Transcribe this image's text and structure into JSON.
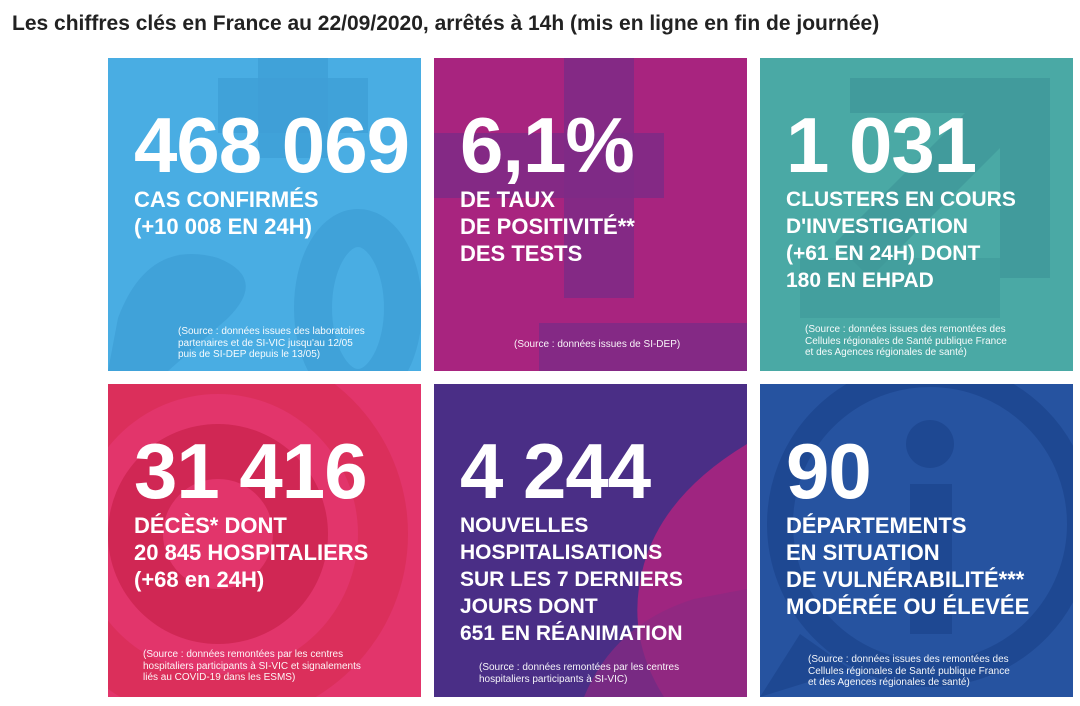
{
  "page": {
    "title": "Les chiffres clés en France au 22/09/2020, arrêtés à 14h (mis en ligne en fin de journée)"
  },
  "tiles": [
    {
      "value": "468 069",
      "label": [
        "CAS CONFIRMÉS",
        "(+10 008 EN 24H)"
      ],
      "source": [
        "(Source : données issues des laboratoires",
        "partenaires et de SI-VIC jusqu'au 12/05",
        "puis de SI-DEP depuis le 13/05)"
      ],
      "color": "#49ade3"
    },
    {
      "value": "6,1%",
      "label": [
        "DE TAUX",
        "DE POSITIVITÉ**",
        "DES TESTS"
      ],
      "source": [
        "(Source : données issues de SI-DEP)"
      ],
      "color": "#a8247f"
    },
    {
      "value": "1 031",
      "label": [
        "CLUSTERS EN COURS",
        "D'INVESTIGATION",
        "(+61 EN 24H) DONT",
        "180 EN EHPAD"
      ],
      "source": [
        "(Source : données issues des remontées des",
        "Cellules régionales de Santé publique France",
        "et des Agences régionales de santé)"
      ],
      "color": "#4aa9a5"
    },
    {
      "value": "31 416",
      "label": [
        "DÉCÈS* DONT",
        "20 845 HOSPITALIERS",
        "(+68 en 24H)"
      ],
      "source": [
        "(Source : données remontées par les centres",
        "hospitaliers participants à SI-VIC et signalements",
        "liés au COVID-19 dans les ESMS)"
      ],
      "color": "#e2356b"
    },
    {
      "value": "4 244",
      "label": [
        "NOUVELLES",
        "HOSPITALISATIONS",
        "SUR LES 7 DERNIERS",
        "JOURS DONT",
        "651 EN RÉANIMATION"
      ],
      "source": [
        "(Source : données remontées par les centres",
        "hospitaliers participants à SI-VIC)"
      ],
      "color": "#4a2e86"
    },
    {
      "value": "90",
      "label": [
        "DÉPARTEMENTS",
        "EN SITUATION",
        "DE VULNÉRABILITÉ***",
        "MODÉRÉE OU ÉLEVÉE"
      ],
      "source": [
        "(Source : données issues des remontées des",
        "Cellules régionales de Santé publique France",
        "et des Agences régionales de santé)"
      ],
      "color": "#2653a0"
    }
  ]
}
